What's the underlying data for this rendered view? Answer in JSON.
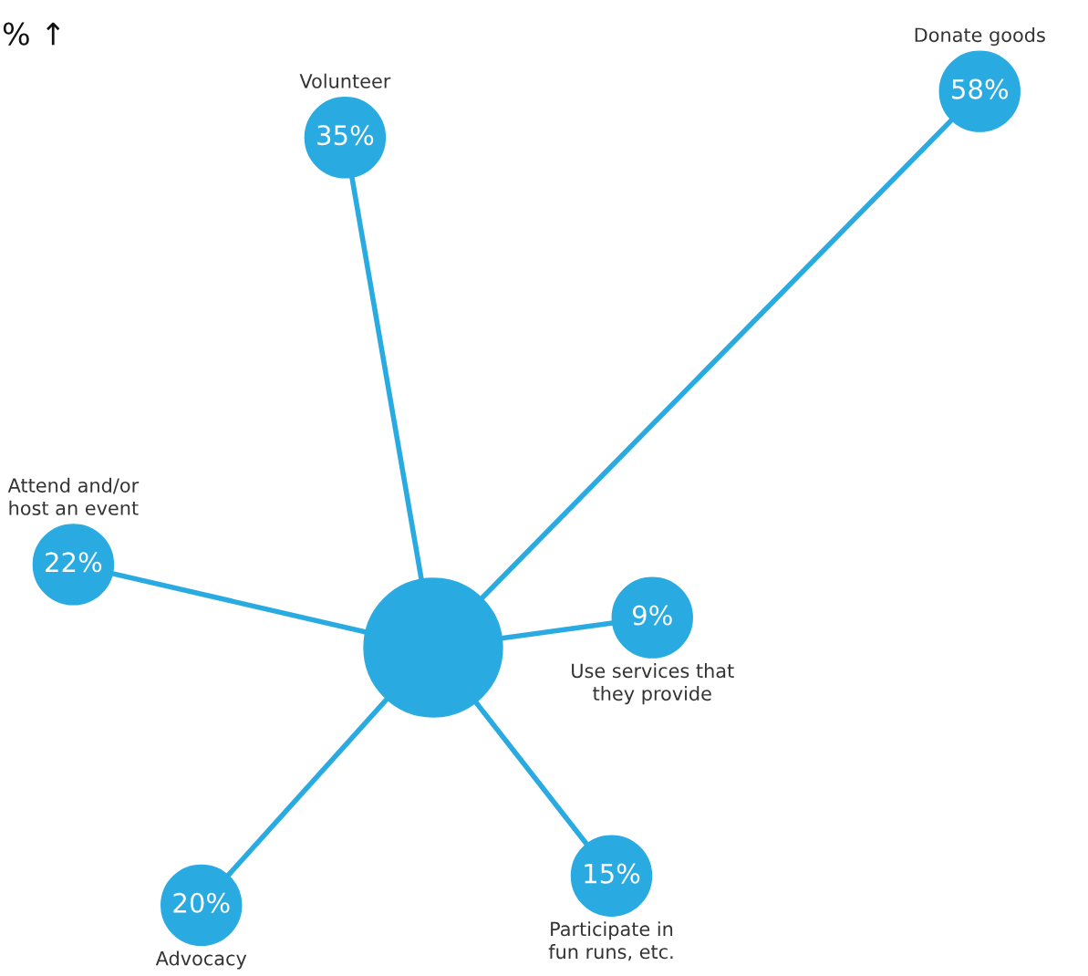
{
  "chart_data": {
    "type": "other",
    "categories": [
      "Donate goods",
      "Volunteer",
      "Attend and/or\nhost an event",
      "Advocacy",
      "Participate in\nfun runs, etc.",
      "Use services that\nthey provide"
    ],
    "values": [
      58,
      35,
      22,
      20,
      15,
      9
    ],
    "value_labels": [
      "58%",
      "35%",
      "22%",
      "20%",
      "15%",
      "9%"
    ],
    "color": "#29abe2",
    "annotations": [
      "% ↑"
    ]
  }
}
